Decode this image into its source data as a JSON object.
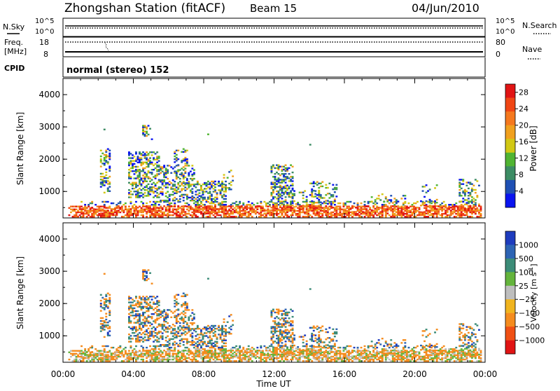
{
  "header": {
    "title": "Zhongshan Station (fitACF)",
    "beam": "Beam 15",
    "date": "04/Jun/2010"
  },
  "sky_panel": {
    "left_label": "N.Sky",
    "right_label": "N.Search",
    "left_ticks": [
      "10^5",
      "10^0"
    ],
    "right_ticks": [
      "10^5",
      "10^0"
    ]
  },
  "freq_panel": {
    "left_label_1": "Freq.",
    "left_label_2": "[MHz]",
    "right_label": "Nave",
    "left_ticks": [
      "18",
      "8"
    ],
    "right_ticks": [
      "80",
      "0"
    ]
  },
  "cpid_panel": {
    "label": "CPID",
    "text": "normal (stereo) 152"
  },
  "colors": {
    "power_scale": [
      "#0a14f0",
      "#1f50b4",
      "#3c8c64",
      "#50b432",
      "#d2c814",
      "#f0a01e",
      "#f5781e",
      "#f04614",
      "#e11414"
    ],
    "velocity_scale": [
      "#1e3cbe",
      "#2d64b4",
      "#3c8c78",
      "#64b43c",
      "#bebebe",
      "#f0b41e",
      "#f58c1e",
      "#f05014",
      "#e11414"
    ]
  },
  "chart_data": [
    {
      "type": "heatmap",
      "name": "power",
      "ylabel": "Slant Range [km]",
      "yticks": [
        "1000",
        "2000",
        "3000",
        "4000"
      ],
      "ylim": [
        180,
        4500
      ],
      "xlim_hours": [
        0,
        24
      ],
      "colorbar_label": "Power [dB]",
      "colorbar_ticks": [
        "4",
        "8",
        "12",
        "16",
        "20",
        "24",
        "28"
      ],
      "colorbar_range": [
        0,
        30
      ]
    },
    {
      "type": "heatmap",
      "name": "velocity",
      "ylabel": "Slant Range [km]",
      "yticks": [
        "1000",
        "2000",
        "3000",
        "4000"
      ],
      "ylim": [
        180,
        4500
      ],
      "xlim_hours": [
        0,
        24
      ],
      "xlabel": "Time UT",
      "xticks": [
        "00:00",
        "04:00",
        "08:00",
        "12:00",
        "16:00",
        "20:00",
        "00:00"
      ],
      "colorbar_label": "Velocity [m s",
      "colorbar_label_sup": "-1",
      "colorbar_label_end": "]",
      "colorbar_ticks": [
        "1000",
        "500",
        "100",
        "25",
        "−25",
        "−100",
        "−500",
        "−1000"
      ]
    }
  ]
}
